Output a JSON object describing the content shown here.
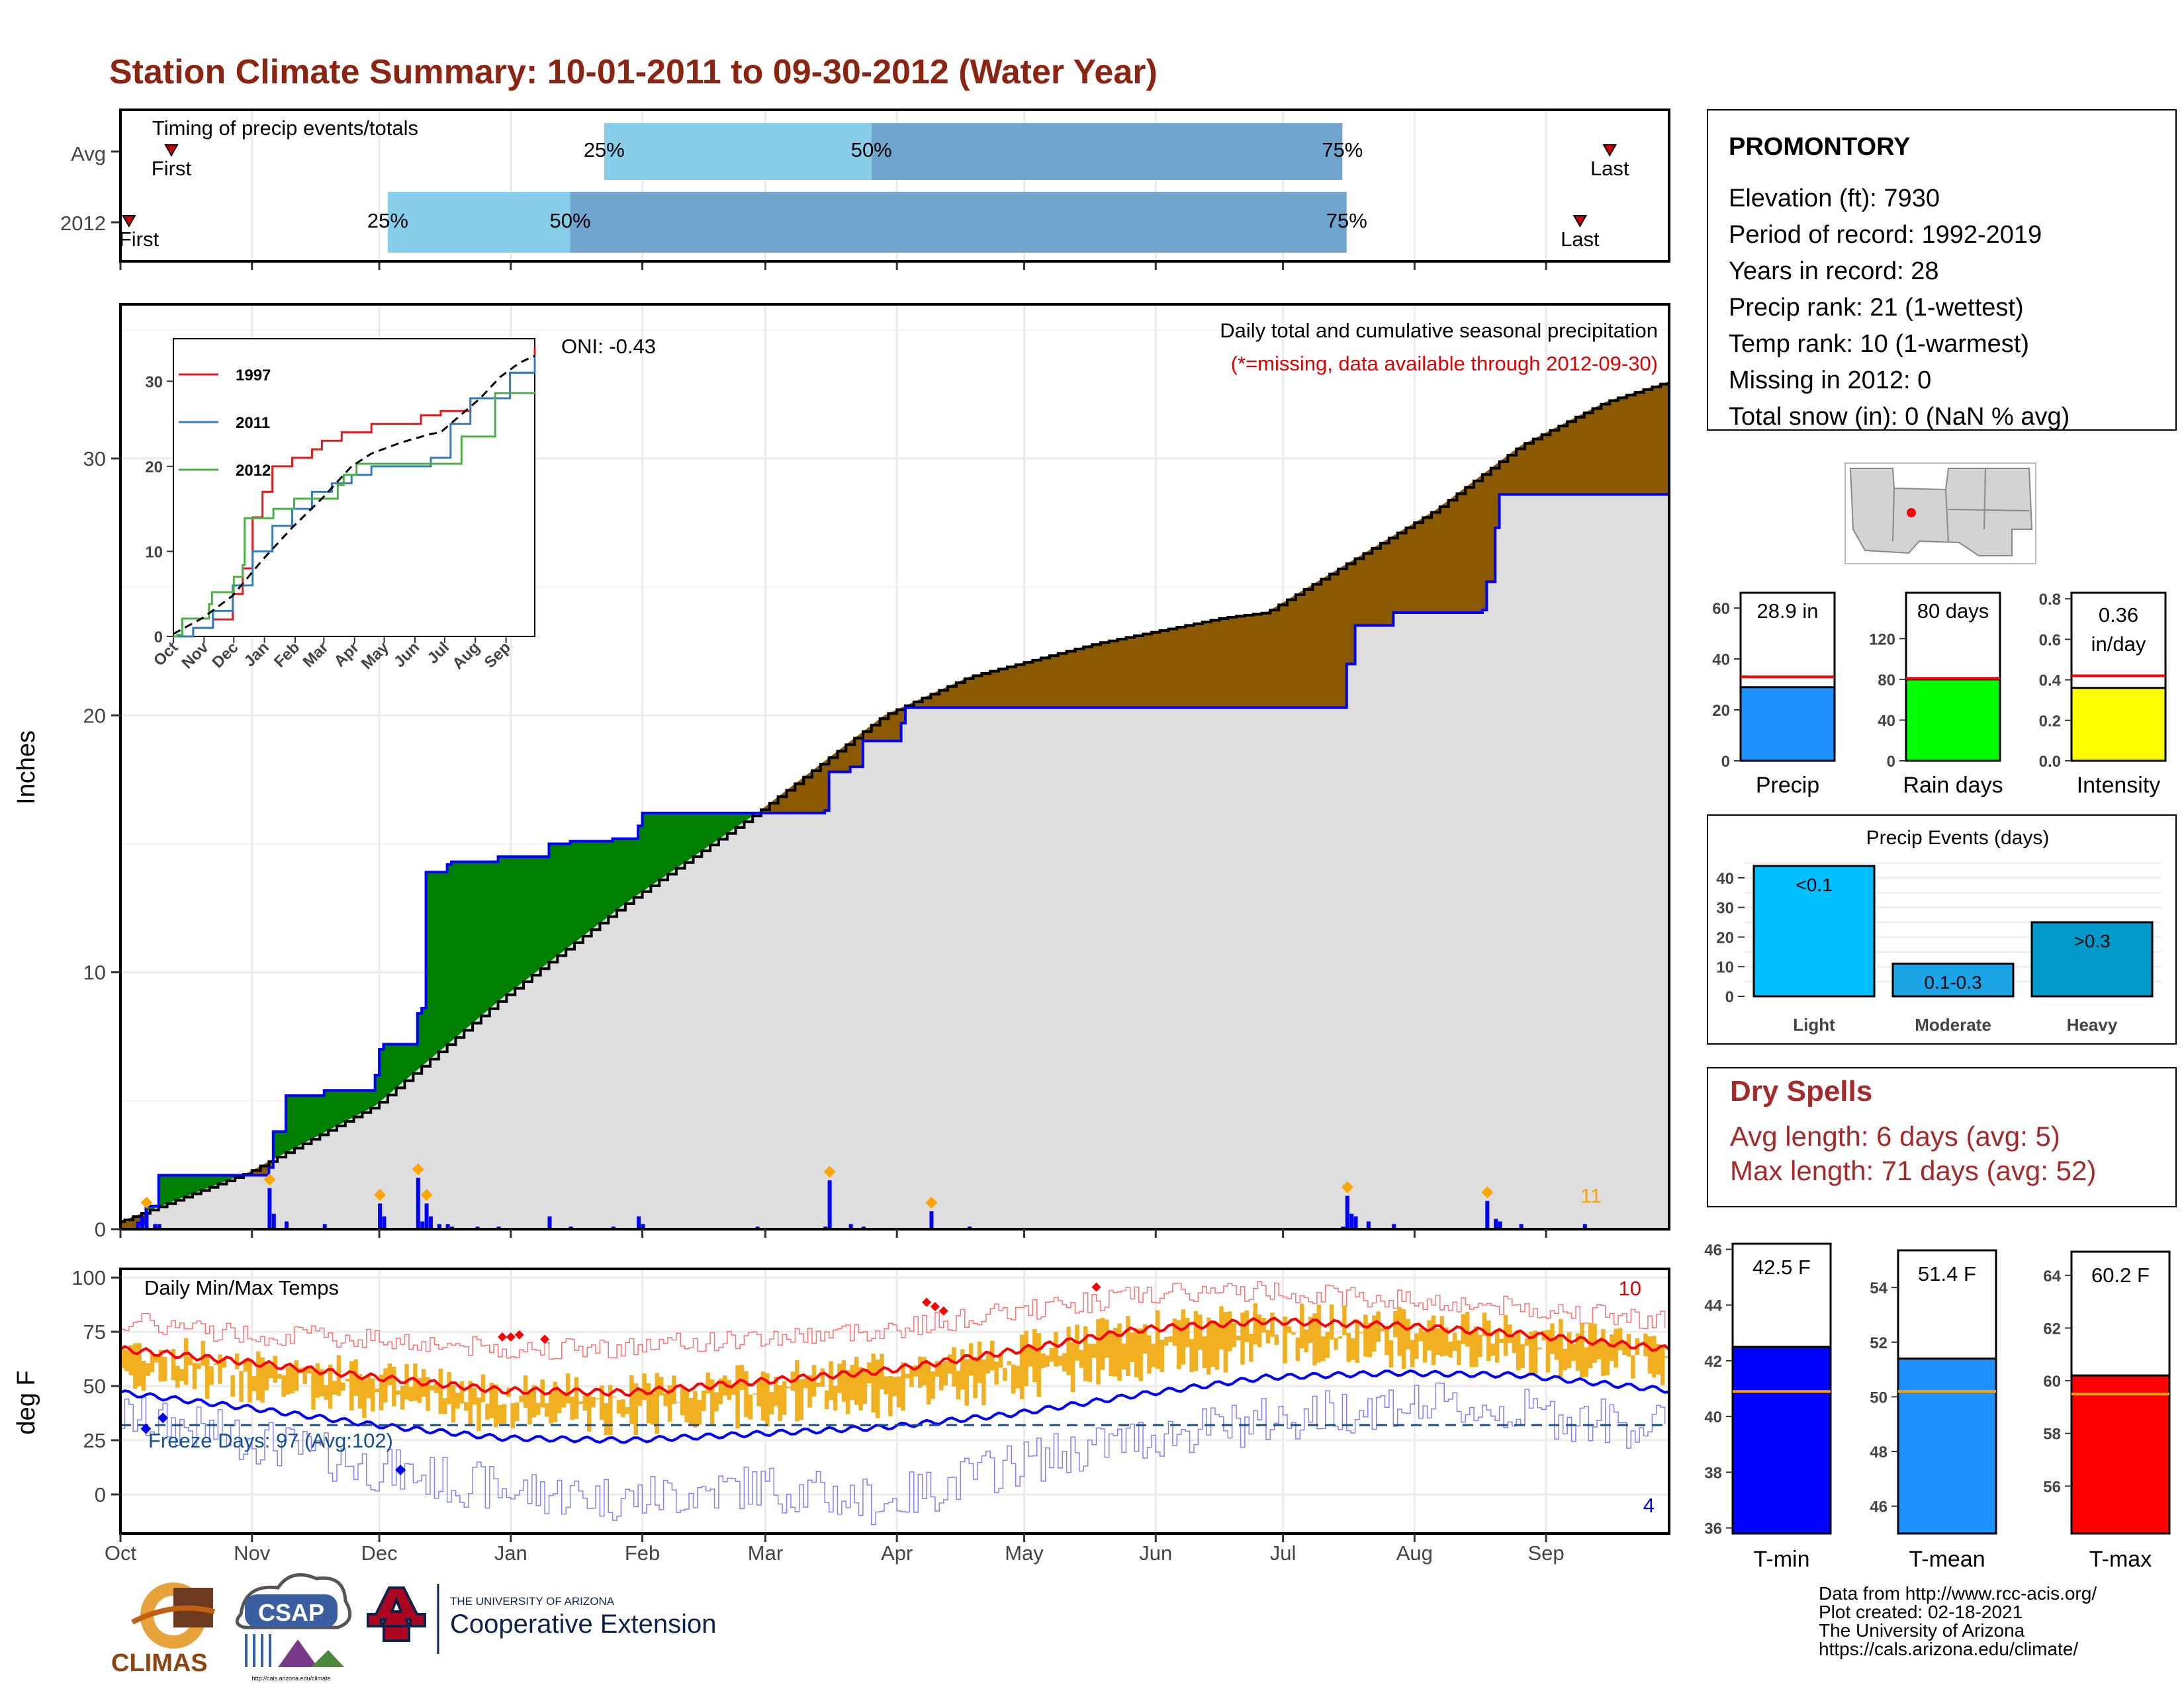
{
  "title": "Station Climate Summary: 10-01-2011 to 09-30-2012 (Water Year)",
  "colors": {
    "title": "#8B2512",
    "quartile_light": "#87CEEB",
    "quartile_dark": "#6FA5CF",
    "above_avg": "#8B5A00",
    "below_avg": "#008000",
    "avg_fill": "#DEDEDE",
    "current_line": "#0000FF",
    "avg_line": "#000000",
    "precip_bar": "#1E90FF",
    "rain_bar": "#00FF00",
    "intensity_bar": "#FFFF00",
    "light_bar": "#00BFFF",
    "moderate_bar": "#1CA5E6",
    "heavy_bar": "#0099CC",
    "tmin_bar": "#0000FF",
    "tmean_bar": "#1E90FF",
    "tmax_bar": "#FF0000",
    "temp_range": "#F0B020",
    "dry_spells": "#A52A2A"
  },
  "timing_panel": {
    "label": "Timing of precip events/totals",
    "rows": [
      {
        "name": "Avg",
        "first_label": "First",
        "last_label": "Last",
        "first_day": 12,
        "q25_day": 114,
        "q50_day": 177,
        "q75_day": 288,
        "last_day": 351
      },
      {
        "name": "2012",
        "first_label": "First",
        "last_label": "Last",
        "first_day": 2,
        "q25_day": 63,
        "q50_day": 106,
        "q75_day": 289,
        "last_day": 344
      }
    ],
    "q_labels": [
      "25%",
      "50%",
      "75%"
    ]
  },
  "precip_panel": {
    "ylabel": "Inches",
    "yticks": [
      0,
      10,
      20,
      30
    ],
    "ylim": [
      0,
      36
    ],
    "title": "Daily total and cumulative seasonal precipitation",
    "subtitle": "(*=missing, data available through 2012-09-30)",
    "oni": "ONI: -0.43",
    "count_label": "11",
    "avg_cumulative": {
      "day": [
        0,
        30,
        60,
        90,
        120,
        150,
        180,
        200,
        230,
        260,
        270,
        290,
        310,
        330,
        350,
        365
      ],
      "inches": [
        0.3,
        2.2,
        4.8,
        9.0,
        12.8,
        16.2,
        20.0,
        21.5,
        22.8,
        23.8,
        24.0,
        26.0,
        28.0,
        30.5,
        32.2,
        33.0
      ]
    },
    "current_cumulative": {
      "day": [
        0,
        4,
        6,
        9,
        35,
        36,
        39,
        48,
        60,
        61,
        62,
        70,
        71,
        72,
        77,
        78,
        79,
        89,
        101,
        106,
        116,
        122,
        123,
        166,
        167,
        172,
        175,
        184,
        185,
        191,
        243,
        288,
        289,
        291,
        300,
        321,
        322,
        324,
        325,
        365
      ],
      "inches": [
        0.0,
        0.2,
        0.9,
        2.1,
        2.4,
        3.8,
        5.2,
        5.4,
        6.0,
        7.0,
        7.2,
        8.4,
        8.6,
        13.9,
        14.2,
        14.3,
        14.3,
        14.5,
        15.0,
        15.1,
        15.2,
        15.7,
        16.2,
        16.3,
        17.8,
        18.0,
        19.0,
        19.7,
        20.3,
        20.3,
        20.3,
        20.3,
        22.0,
        23.5,
        24.0,
        24.1,
        25.2,
        27.3,
        28.6,
        28.8
      ]
    },
    "daily_precip": {
      "day": [
        4,
        5,
        6,
        8,
        9,
        35,
        36,
        39,
        48,
        61,
        62,
        70,
        71,
        72,
        73,
        75,
        77,
        78,
        84,
        89,
        101,
        106,
        116,
        122,
        123,
        150,
        166,
        167,
        172,
        175,
        191,
        200,
        288,
        289,
        290,
        291,
        294,
        300,
        322,
        324,
        325,
        330,
        345
      ],
      "inches": [
        0.3,
        0.5,
        0.7,
        0.2,
        0.2,
        1.6,
        0.6,
        0.3,
        0.2,
        1.0,
        0.5,
        2.0,
        0.3,
        1.0,
        0.5,
        0.2,
        0.2,
        0.1,
        0.1,
        0.1,
        0.5,
        0.1,
        0.1,
        0.5,
        0.2,
        0.1,
        0.1,
        1.9,
        0.2,
        0.1,
        0.7,
        0.1,
        0.1,
        1.3,
        0.6,
        0.5,
        0.3,
        0.2,
        1.1,
        0.4,
        0.3,
        0.2,
        0.2
      ]
    }
  },
  "inset": {
    "yticks": [
      0,
      10,
      20,
      30
    ],
    "ylim": [
      0,
      35
    ],
    "xticks": [
      "Oct",
      "Nov",
      "Dec",
      "Jan",
      "Feb",
      "Mar",
      "Apr",
      "May",
      "Jun",
      "Jul",
      "Aug",
      "Sep"
    ],
    "series": [
      {
        "name": "1997",
        "color": "#E41A1C",
        "day": [
          0,
          20,
          40,
          60,
          70,
          80,
          90,
          100,
          120,
          140,
          150,
          170,
          200,
          250,
          270,
          300,
          340,
          365
        ],
        "inches": [
          0,
          1,
          2,
          5,
          8,
          14,
          17,
          20,
          21,
          22,
          23,
          24,
          25,
          26,
          26.5,
          28,
          31,
          34
        ]
      },
      {
        "name": "2011",
        "color": "#377EB8",
        "day": [
          0,
          20,
          40,
          60,
          80,
          100,
          120,
          140,
          160,
          180,
          200,
          240,
          260,
          280,
          300,
          340,
          365
        ],
        "inches": [
          0,
          1,
          3,
          6,
          10,
          13,
          15,
          17,
          18,
          19,
          20,
          20,
          21,
          25,
          28,
          31,
          33
        ]
      },
      {
        "name": "2012",
        "color": "#4DAF4A",
        "day": [
          0,
          4,
          9,
          36,
          39,
          61,
          70,
          72,
          101,
          122,
          166,
          172,
          185,
          288,
          291,
          325,
          365
        ],
        "inches": [
          0,
          0.2,
          2.1,
          3.8,
          5.2,
          7.0,
          8.4,
          13.9,
          15.0,
          16.2,
          17.8,
          19.0,
          20.3,
          20.3,
          23.5,
          28.6,
          28.8
        ]
      }
    ],
    "avg": {
      "day": [
        0,
        30,
        60,
        90,
        120,
        150,
        180,
        200,
        230,
        260,
        270,
        290,
        310,
        330,
        350,
        365
      ],
      "inches": [
        0.3,
        2.2,
        4.8,
        9.0,
        12.8,
        16.2,
        20.0,
        21.5,
        22.8,
        23.8,
        24.0,
        26.0,
        28.0,
        30.5,
        32.2,
        33.0
      ]
    }
  },
  "temp_panel": {
    "ylabel": "deg F",
    "title": "Daily Min/Max Temps",
    "yticks": [
      0,
      25,
      50,
      75,
      100
    ],
    "ylim": [
      -18,
      104
    ],
    "freeze_label": "Freeze Days: 97 (Avg:102)",
    "freeze_threshold": 32,
    "max_count": "10",
    "min_count": "4",
    "avg_max": {
      "day": [
        0,
        30,
        60,
        90,
        120,
        150,
        180,
        210,
        240,
        270,
        300,
        330,
        365
      ],
      "temp": [
        67,
        61,
        54,
        48,
        47,
        52,
        57,
        66,
        76,
        80,
        78,
        74,
        67
      ]
    },
    "avg_min": {
      "day": [
        0,
        30,
        60,
        90,
        120,
        150,
        180,
        210,
        240,
        270,
        300,
        330,
        365
      ],
      "temp": [
        47,
        40,
        32,
        26,
        25,
        28,
        31,
        37,
        46,
        54,
        56,
        55,
        48
      ]
    },
    "record_max": {
      "day": [
        0,
        30,
        60,
        90,
        120,
        150,
        180,
        210,
        240,
        270,
        300,
        330,
        365
      ],
      "temp": [
        80,
        74,
        72,
        67,
        68,
        72,
        76,
        84,
        92,
        94,
        90,
        86,
        80
      ]
    },
    "record_min": {
      "day": [
        0,
        30,
        60,
        90,
        120,
        150,
        180,
        210,
        240,
        270,
        300,
        330,
        365
      ],
      "temp": [
        36,
        26,
        12,
        2,
        -2,
        4,
        -4,
        14,
        26,
        34,
        42,
        38,
        30
      ]
    }
  },
  "months": [
    "Oct",
    "Nov",
    "Dec",
    "Jan",
    "Feb",
    "Mar",
    "Apr",
    "May",
    "Jun",
    "Jul",
    "Aug",
    "Sep"
  ],
  "station": {
    "name": "PROMONTORY",
    "lines": [
      "Elevation (ft): 7930",
      "Period of record: 1992-2019",
      "Years in record: 28",
      "Precip rank: 21 (1-wettest)",
      "Temp rank: 10 (1-warmest)",
      "Missing in 2012: 0",
      "Total snow (in): 0 (NaN % avg)"
    ]
  },
  "summary_bars": [
    {
      "name": "Precip",
      "value_label": "28.9 in",
      "value": 28.9,
      "avg": 33,
      "yticks": [
        0,
        20,
        40,
        60
      ],
      "ylim": [
        0,
        66
      ]
    },
    {
      "name": "Rain days",
      "value_label": "80 days",
      "value": 80,
      "avg": 81,
      "yticks": [
        0,
        40,
        80,
        120
      ],
      "ylim": [
        0,
        165
      ]
    },
    {
      "name": "Intensity",
      "value_label": "0.36 in/day",
      "value_label_l1": "0.36",
      "value_label_l2": "in/day",
      "value": 0.36,
      "avg": 0.42,
      "yticks": [
        0.0,
        0.2,
        0.4,
        0.6,
        0.8
      ],
      "ylim": [
        0,
        0.83
      ]
    }
  ],
  "precip_events": {
    "title": "Precip Events (days)",
    "categories": [
      "Light",
      "Moderate",
      "Heavy"
    ],
    "bar_labels": [
      "<0.1",
      "0.1-0.3",
      ">0.3"
    ],
    "values": [
      44,
      11,
      25
    ],
    "yticks": [
      0,
      10,
      20,
      30,
      40
    ],
    "ylim": [
      0,
      46
    ]
  },
  "dry_spells": {
    "title": "Dry Spells",
    "lines": [
      "Avg length: 6 days (avg: 5)",
      "Max length: 71 days (avg: 52)"
    ]
  },
  "temp_bars": [
    {
      "name": "T-min",
      "value_label": "42.5 F",
      "value": 42.5,
      "avg": 40.9,
      "yticks": [
        36,
        38,
        40,
        42,
        44,
        46
      ],
      "ylim": [
        35.8,
        46.2
      ]
    },
    {
      "name": "T-mean",
      "value_label": "51.4 F",
      "value": 51.4,
      "avg": 50.2,
      "yticks": [
        46,
        48,
        50,
        52,
        54
      ],
      "ylim": [
        45.0,
        55.6
      ]
    },
    {
      "name": "T-max",
      "value_label": "60.2 F",
      "value": 60.2,
      "avg": 59.5,
      "yticks": [
        56,
        58,
        60,
        62,
        64
      ],
      "ylim": [
        54.2,
        65.2
      ]
    }
  ],
  "credits": [
    "Data from http://www.rcc-acis.org/",
    "Plot created: 02-18-2021",
    "The University of Arizona",
    "https://cals.arizona.edu/climate/"
  ],
  "logos": {
    "climas": "CLIMAS",
    "csap": "CSAP",
    "csap_url": "http://cals.arizona.edu/climate",
    "ua_small": "THE UNIVERSITY OF ARIZONA",
    "ua_big": "Cooperative Extension"
  }
}
